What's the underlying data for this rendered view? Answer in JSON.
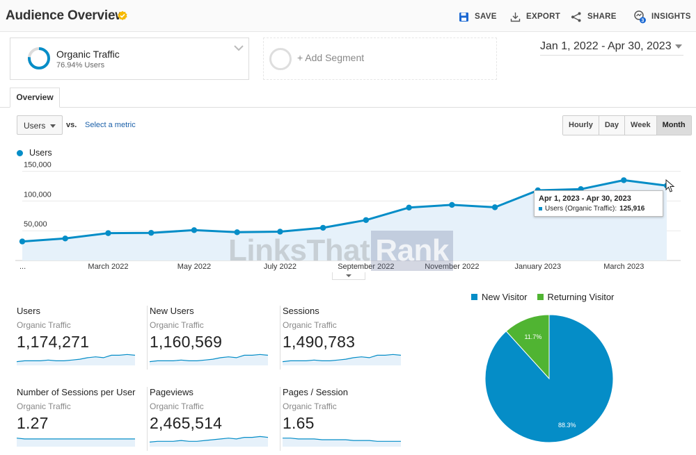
{
  "header": {
    "title": "Audience Overview",
    "actions": [
      {
        "label": "SAVE",
        "icon": "save-icon"
      },
      {
        "label": "EXPORT",
        "icon": "export-icon"
      },
      {
        "label": "SHARE",
        "icon": "share-icon"
      },
      {
        "label": "INSIGHTS",
        "icon": "insights-icon",
        "badge": "3"
      }
    ]
  },
  "segments": {
    "active": {
      "name": "Organic Traffic",
      "subtitle": "76.94% Users",
      "ring_fraction": 0.7694
    },
    "add_label": "+ Add Segment"
  },
  "date_range": "Jan 1, 2022 - Apr 30, 2023",
  "tabs": [
    {
      "label": "Overview"
    }
  ],
  "controls": {
    "metric": "Users",
    "vs_label": "vs.",
    "select_metric": "Select a metric",
    "granularity": [
      "Hourly",
      "Day",
      "Week",
      "Month"
    ],
    "active_granularity": "Month"
  },
  "colors": {
    "primary": "#058dc7",
    "secondary": "#50b432",
    "area": "#e6f1fa"
  },
  "chart_data": {
    "type": "line",
    "legend": "Users",
    "x": [
      "Jan 2022",
      "Feb 2022",
      "Mar 2022",
      "Apr 2022",
      "May 2022",
      "Jun 2022",
      "Jul 2022",
      "Aug 2022",
      "Sep 2022",
      "Oct 2022",
      "Nov 2022",
      "Dec 2022",
      "Jan 2023",
      "Feb 2023",
      "Mar 2023",
      "Apr 2023"
    ],
    "values": [
      32000,
      37000,
      46000,
      46500,
      51000,
      47500,
      48500,
      55000,
      68000,
      89000,
      93500,
      89500,
      118000,
      120000,
      135000,
      125916
    ],
    "x_tick_labels": [
      "...",
      "March 2022",
      "May 2022",
      "July 2022",
      "September 2022",
      "November 2022",
      "January 2023",
      "March 2023"
    ],
    "y_tick_labels": [
      "150,000",
      "100,000",
      "50,000"
    ],
    "y_ticks": [
      150000,
      100000,
      50000
    ],
    "ylim": [
      0,
      160000
    ],
    "grid": true,
    "tooltip": {
      "title": "Apr 1, 2023 - Apr 30, 2023",
      "series": "Users (Organic Traffic):",
      "value": "125,916"
    }
  },
  "watermark": {
    "part1": "LinksThat",
    "part2": "Rank"
  },
  "metrics": [
    {
      "name": "Users",
      "segment": "Organic Traffic",
      "value": "1,174,271",
      "spark": [
        3,
        4,
        4,
        4,
        5,
        4,
        4,
        5,
        6,
        8,
        9,
        8,
        11,
        11,
        12,
        11
      ]
    },
    {
      "name": "New Users",
      "segment": "Organic Traffic",
      "value": "1,160,569",
      "spark": [
        3,
        4,
        4,
        4,
        5,
        4,
        4,
        5,
        6,
        8,
        9,
        8,
        11,
        11,
        12,
        11
      ]
    },
    {
      "name": "Sessions",
      "segment": "Organic Traffic",
      "value": "1,490,783",
      "spark": [
        3,
        4,
        4,
        4,
        5,
        4,
        4,
        5,
        6,
        8,
        9,
        8,
        11,
        11,
        12,
        11
      ]
    },
    {
      "name": "Number of Sessions per User",
      "segment": "Organic Traffic",
      "value": "1.27",
      "spark": [
        9,
        8,
        8,
        8,
        8,
        8,
        8,
        8,
        8,
        8,
        8,
        8,
        8,
        8,
        8,
        8
      ]
    },
    {
      "name": "Pageviews",
      "segment": "Organic Traffic",
      "value": "2,465,514",
      "spark": [
        4,
        5,
        5,
        5,
        6,
        5,
        5,
        6,
        7,
        8,
        9,
        8,
        10,
        10,
        11,
        10
      ]
    },
    {
      "name": "Pages / Session",
      "segment": "Organic Traffic",
      "value": "1.65",
      "spark": [
        9,
        9,
        8,
        8,
        8,
        7,
        7,
        7,
        7,
        6,
        6,
        6,
        5,
        5,
        5,
        5
      ]
    }
  ],
  "pie": {
    "type": "pie",
    "legend": [
      "New Visitor",
      "Returning Visitor"
    ],
    "values": [
      88.3,
      11.7
    ],
    "labels": [
      "88.3%",
      "11.7%"
    ],
    "colors": [
      "#058dc7",
      "#50b432"
    ]
  }
}
